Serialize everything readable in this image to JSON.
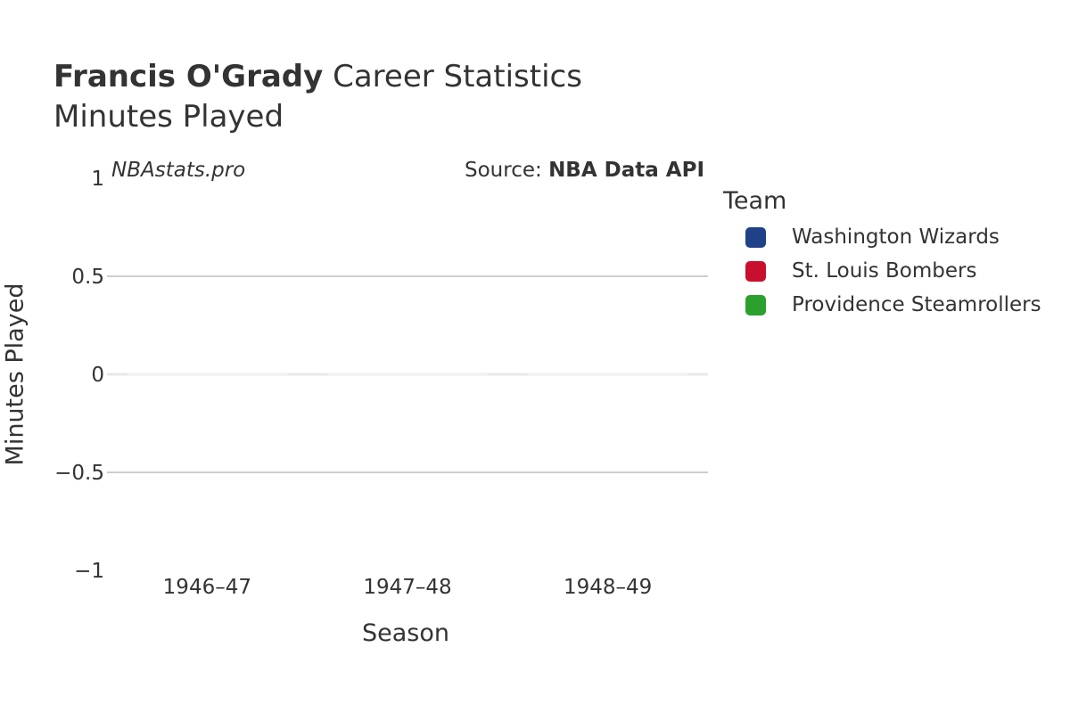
{
  "header": {
    "player_name": "Francis O'Grady",
    "title_suffix": " Career Statistics",
    "subtitle": "Minutes Played"
  },
  "watermark": "NBAstats.pro",
  "source": {
    "prefix": "Source: ",
    "name": "NBA Data API"
  },
  "legend": {
    "title": "Team",
    "items": [
      {
        "label": "Washington Wizards",
        "color": "#1f4188"
      },
      {
        "label": "St. Louis Bombers",
        "color": "#c8102e"
      },
      {
        "label": "Providence Steamrollers",
        "color": "#2ca02c"
      }
    ]
  },
  "chart_data": {
    "type": "bar",
    "title": "Francis O'Grady Career Statistics",
    "subtitle": "Minutes Played",
    "xlabel": "Season",
    "ylabel": "Minutes Played",
    "categories": [
      "1946–47",
      "1947–48",
      "1948–49"
    ],
    "ylim": [
      -1,
      1
    ],
    "yticks": [
      -1,
      -0.5,
      0,
      0.5,
      1
    ],
    "ytick_labels": [
      "−1",
      "−0.5",
      "0",
      "0.5",
      "1"
    ],
    "series": [
      {
        "name": "Washington Wizards",
        "values": [
          0,
          null,
          null
        ]
      },
      {
        "name": "St. Louis Bombers",
        "values": [
          null,
          0,
          null
        ]
      },
      {
        "name": "Providence Steamrollers",
        "values": [
          null,
          null,
          0
        ]
      }
    ],
    "grid": true,
    "legend_position": "right"
  }
}
